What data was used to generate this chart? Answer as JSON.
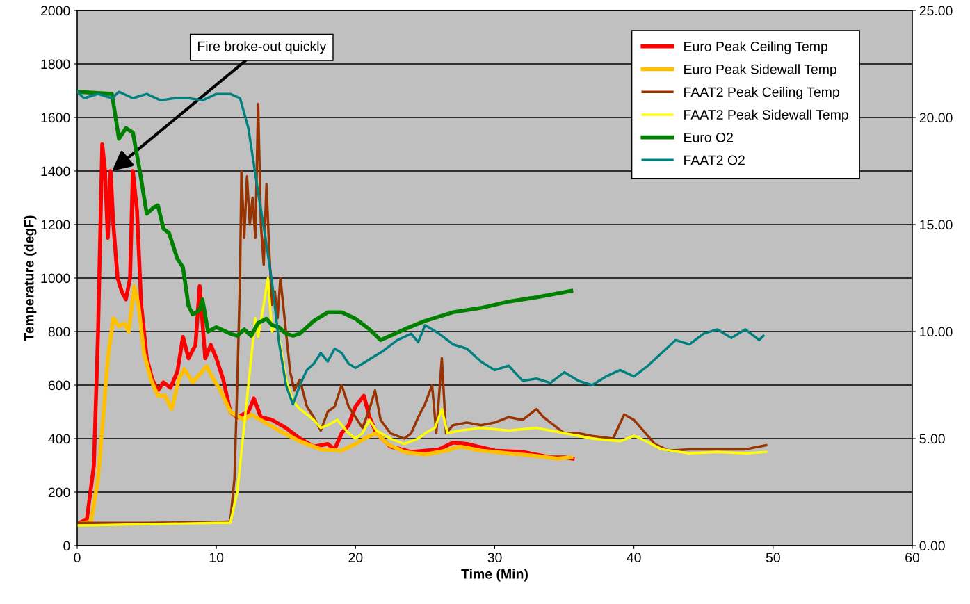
{
  "chart_data": {
    "type": "line",
    "xlabel": "Time (Min)",
    "ylabel": "Temperature (degF)",
    "xlim": [
      0,
      60
    ],
    "xticks": [
      0,
      10,
      20,
      30,
      40,
      50,
      60
    ],
    "ylim": [
      0,
      2000
    ],
    "yticks": [
      0,
      200,
      400,
      600,
      800,
      1000,
      1200,
      1400,
      1600,
      1800,
      2000
    ],
    "y2lim": [
      0,
      25
    ],
    "y2ticks": [
      {
        "value": 0,
        "label": "0.00"
      },
      {
        "value": 5,
        "label": "5.00"
      },
      {
        "value": 10,
        "label": "10.00"
      },
      {
        "value": 15,
        "label": "15.00"
      },
      {
        "value": 20,
        "label": "20.00"
      },
      {
        "value": 25,
        "label": "25.00"
      }
    ],
    "grid": "y",
    "legend": "top right",
    "marker": "none",
    "line_style": "solid",
    "annotations": [
      {
        "text": "Fire broke-out quickly",
        "x": 2.5,
        "y": 1400
      }
    ],
    "series": [
      {
        "name": "Euro Peak Ceiling Temp",
        "color": "#ff0000",
        "x": [
          0,
          0.7,
          1.2,
          1.5,
          1.8,
          2.0,
          2.2,
          2.4,
          2.6,
          2.9,
          3.2,
          3.5,
          3.8,
          4.0,
          4.3,
          4.6,
          5.0,
          5.4,
          5.8,
          6.2,
          6.7,
          7.2,
          7.6,
          8.0,
          8.5,
          8.8,
          9.2,
          9.6,
          10.0,
          10.5,
          11.0,
          11.5,
          12.3,
          12.7,
          13.2,
          14.0,
          15.0,
          16.0,
          17.0,
          18.0,
          18.5,
          19.0,
          19.5,
          20.0,
          20.6,
          21.0,
          21.5,
          22.5,
          24.0,
          26.0,
          27.0,
          28.0,
          30.0,
          32.0,
          34.0,
          35.0,
          35.6
        ],
        "values": [
          80,
          100,
          300,
          800,
          1500,
          1400,
          1150,
          1400,
          1200,
          1000,
          950,
          920,
          1000,
          1400,
          1250,
          900,
          700,
          620,
          580,
          610,
          590,
          650,
          780,
          700,
          750,
          970,
          700,
          750,
          700,
          620,
          500,
          480,
          500,
          550,
          480,
          470,
          440,
          400,
          370,
          380,
          360,
          420,
          450,
          520,
          560,
          480,
          420,
          370,
          350,
          360,
          385,
          380,
          355,
          350,
          330,
          330,
          325
        ]
      },
      {
        "name": "Euro Peak Sidewall Temp",
        "color": "#ffc000",
        "x": [
          0,
          1.0,
          1.5,
          1.9,
          2.2,
          2.6,
          3.0,
          3.4,
          3.7,
          4.1,
          4.4,
          4.8,
          5.3,
          5.8,
          6.3,
          6.8,
          7.3,
          7.7,
          8.3,
          8.8,
          9.3,
          9.8,
          10.3,
          11.0,
          12.0,
          12.5,
          13.5,
          14.5,
          16.0,
          17.5,
          19.0,
          20.0,
          21.0,
          21.5,
          22.3,
          23.5,
          25.0,
          26.5,
          27.5,
          29.0,
          31.0,
          33.0,
          34.5,
          35.5
        ],
        "values": [
          80,
          90,
          250,
          500,
          700,
          850,
          820,
          830,
          800,
          970,
          900,
          720,
          620,
          560,
          560,
          510,
          620,
          660,
          610,
          640,
          670,
          620,
          580,
          500,
          470,
          490,
          460,
          430,
          390,
          360,
          355,
          380,
          410,
          420,
          380,
          350,
          340,
          355,
          370,
          355,
          345,
          335,
          325,
          330
        ]
      },
      {
        "name": "FAAT2 Peak Ceiling Temp",
        "color": "#993300",
        "x": [
          0,
          5,
          10,
          11.0,
          11.3,
          11.5,
          11.7,
          11.8,
          12.0,
          12.2,
          12.4,
          12.6,
          12.8,
          13.0,
          13.2,
          13.4,
          13.6,
          13.8,
          14.0,
          14.2,
          14.4,
          14.6,
          15.0,
          15.3,
          15.6,
          16.0,
          16.5,
          17.0,
          17.5,
          18.0,
          18.5,
          19.0,
          19.5,
          20.0,
          20.5,
          21.0,
          21.4,
          21.8,
          22.5,
          23.5,
          24.0,
          24.5,
          25.0,
          25.5,
          25.8,
          26.2,
          26.5,
          27.0,
          28.0,
          29.0,
          30.0,
          31.0,
          32.0,
          33.0,
          33.5,
          34.0,
          35.0,
          36.0,
          37.0,
          38.5,
          39.3,
          40.0,
          40.5,
          41.5,
          42.5,
          44.0,
          46.0,
          48.0,
          49.5
        ],
        "values": [
          85,
          85,
          88,
          90,
          250,
          600,
          1000,
          1400,
          1150,
          1380,
          1200,
          1300,
          1150,
          1650,
          1200,
          1050,
          1350,
          1100,
          900,
          950,
          850,
          1000,
          800,
          650,
          580,
          620,
          520,
          480,
          430,
          500,
          520,
          600,
          520,
          480,
          440,
          510,
          580,
          470,
          420,
          400,
          420,
          480,
          530,
          600,
          420,
          700,
          420,
          450,
          460,
          450,
          460,
          480,
          470,
          510,
          480,
          460,
          420,
          420,
          410,
          400,
          490,
          470,
          440,
          380,
          355,
          360,
          360,
          360,
          375
        ]
      },
      {
        "name": "FAAT2 Peak Sidewall Temp",
        "color": "#ffff00",
        "x": [
          0,
          10,
          11.0,
          11.5,
          12.0,
          12.5,
          12.8,
          13.0,
          13.4,
          13.7,
          14.0,
          14.3,
          14.6,
          15.0,
          15.5,
          16.0,
          17.0,
          17.5,
          18.0,
          18.7,
          19.5,
          20.0,
          20.5,
          21.0,
          21.5,
          22.5,
          23.5,
          24.5,
          25.0,
          25.7,
          26.2,
          26.6,
          27.5,
          29.0,
          31.0,
          33.0,
          34.0,
          35.0,
          37.0,
          39.0,
          40.0,
          40.5,
          42.0,
          44.0,
          46.0,
          48.0,
          49.5
        ],
        "values": [
          75,
          85,
          85,
          200,
          450,
          700,
          850,
          780,
          900,
          1000,
          800,
          830,
          750,
          620,
          540,
          510,
          470,
          440,
          450,
          470,
          420,
          400,
          420,
          470,
          430,
          400,
          380,
          400,
          420,
          440,
          510,
          420,
          430,
          440,
          430,
          440,
          430,
          420,
          400,
          390,
          410,
          400,
          360,
          345,
          350,
          345,
          350
        ]
      },
      {
        "name": "Euro O2",
        "color": "#008000",
        "axis": "y2",
        "x": [
          0,
          2.5,
          3.0,
          3.5,
          4.0,
          4.5,
          5.0,
          5.5,
          5.8,
          6.2,
          6.6,
          7.2,
          7.6,
          8.0,
          8.3,
          8.8,
          9.0,
          9.4,
          10.0,
          11.0,
          11.5,
          12.0,
          12.5,
          13.0,
          13.6,
          14.0,
          14.5,
          15.0,
          15.5,
          16.0,
          17.0,
          18.0,
          19.0,
          20.0,
          21.0,
          21.8,
          22.5,
          23.5,
          25,
          27,
          29,
          31,
          33,
          35.5
        ],
        "values": [
          21.2,
          21.1,
          19.0,
          19.5,
          19.3,
          17.5,
          15.5,
          15.8,
          15.9,
          14.8,
          14.6,
          13.4,
          13.0,
          11.2,
          10.8,
          11.0,
          11.5,
          10.0,
          10.2,
          9.9,
          9.8,
          10.1,
          9.8,
          10.4,
          10.6,
          10.3,
          10.2,
          9.9,
          9.8,
          9.9,
          10.5,
          10.9,
          10.9,
          10.6,
          10.1,
          9.6,
          9.8,
          10.1,
          10.5,
          10.9,
          11.1,
          11.4,
          11.6,
          11.9
        ]
      },
      {
        "name": "FAAT2 O2",
        "color": "#008080",
        "axis": "y2",
        "x": [
          0,
          0.5,
          1.5,
          2.5,
          3.0,
          4,
          5,
          6,
          7,
          8,
          9,
          10,
          11,
          11.7,
          12.3,
          13.0,
          13.5,
          14,
          14.5,
          15,
          15.5,
          16.0,
          16.5,
          17.0,
          17.5,
          18.0,
          18.5,
          19,
          19.5,
          20,
          21,
          22,
          23,
          24,
          24.5,
          25,
          26,
          27,
          28,
          29,
          30,
          31,
          32,
          33,
          34,
          35,
          36,
          37,
          38,
          39,
          40,
          41,
          42,
          43,
          44,
          45,
          46,
          47,
          48,
          49,
          49.3
        ],
        "values": [
          21.2,
          20.9,
          21.1,
          20.9,
          21.2,
          20.9,
          21.1,
          20.8,
          20.9,
          20.9,
          20.8,
          21.1,
          21.1,
          20.9,
          19.5,
          16.5,
          14.5,
          12.3,
          9.5,
          7.5,
          6.6,
          7.5,
          8.2,
          8.5,
          9.0,
          8.6,
          9.2,
          9.0,
          8.5,
          8.3,
          8.7,
          9.1,
          9.6,
          9.9,
          9.5,
          10.3,
          9.9,
          9.4,
          9.2,
          8.6,
          8.2,
          8.4,
          7.7,
          7.8,
          7.6,
          8.1,
          7.7,
          7.5,
          7.9,
          8.2,
          7.9,
          8.4,
          9.0,
          9.6,
          9.4,
          9.9,
          10.1,
          9.7,
          10.1,
          9.6,
          9.8
        ]
      }
    ]
  }
}
